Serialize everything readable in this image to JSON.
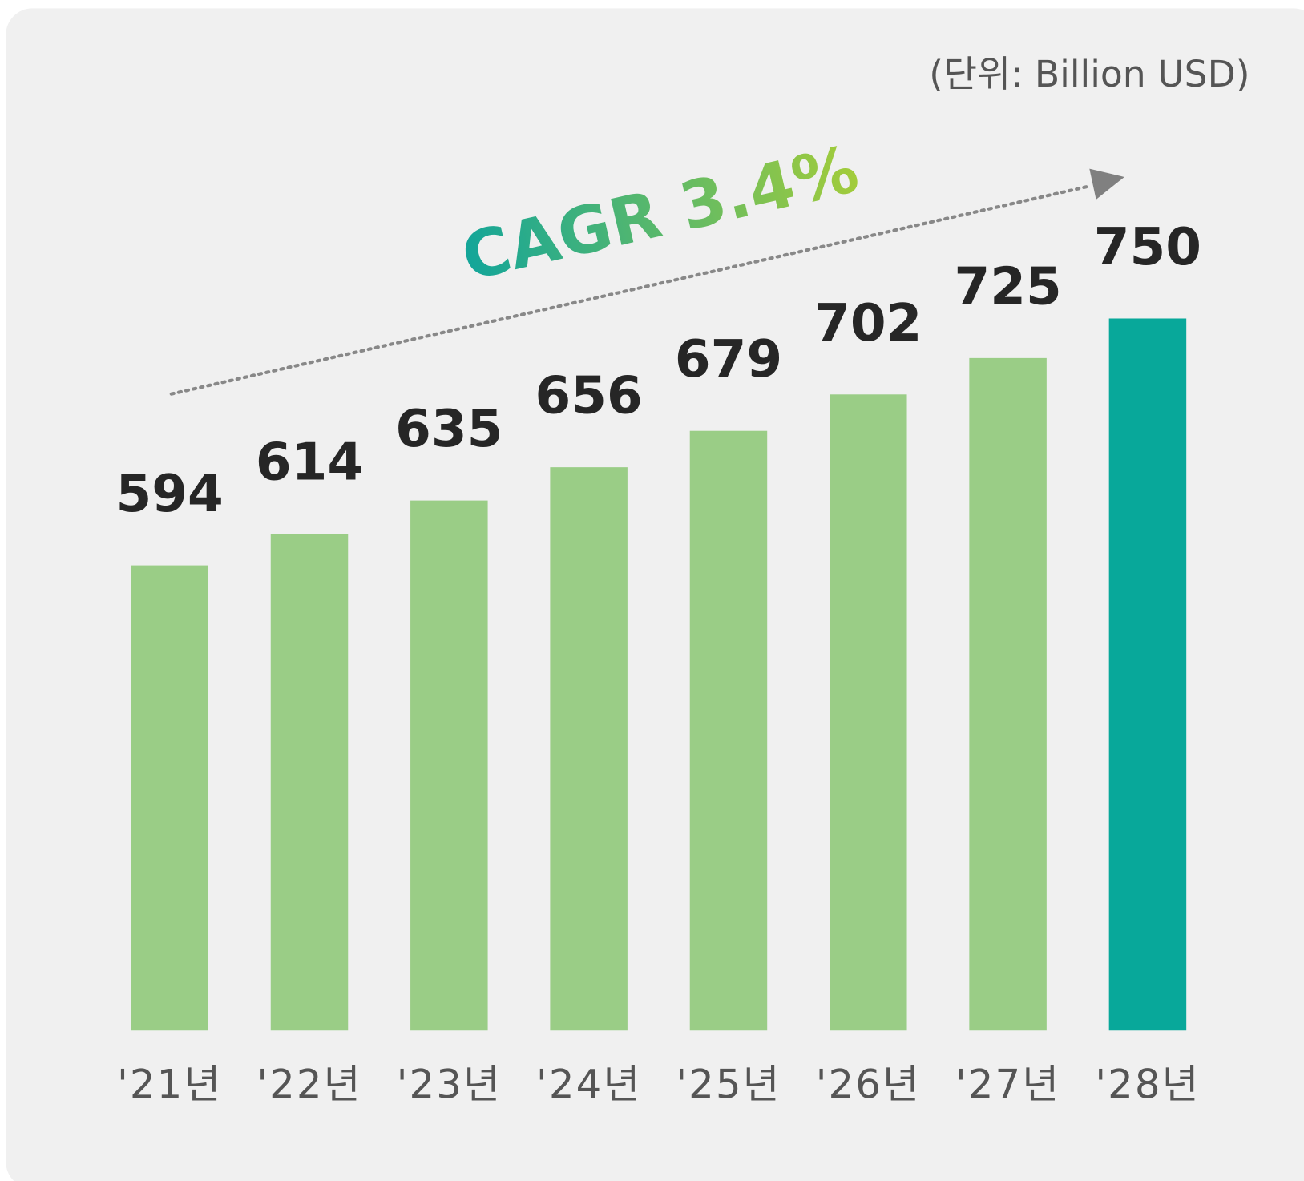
{
  "chart_data": {
    "type": "bar",
    "unit_label": "(단위: Billion USD)",
    "annotation": "CAGR 3.4%",
    "categories": [
      "'21년",
      "'22년",
      "'23년",
      "'24년",
      "'25년",
      "'26년",
      "'27년",
      "'28년"
    ],
    "values": [
      594,
      614,
      635,
      656,
      679,
      702,
      725,
      750
    ],
    "colors": [
      "#9acd86",
      "#9acd86",
      "#9acd86",
      "#9acd86",
      "#9acd86",
      "#9acd86",
      "#9acd86",
      "#08a89a"
    ],
    "ylim": [
      300,
      800
    ]
  }
}
